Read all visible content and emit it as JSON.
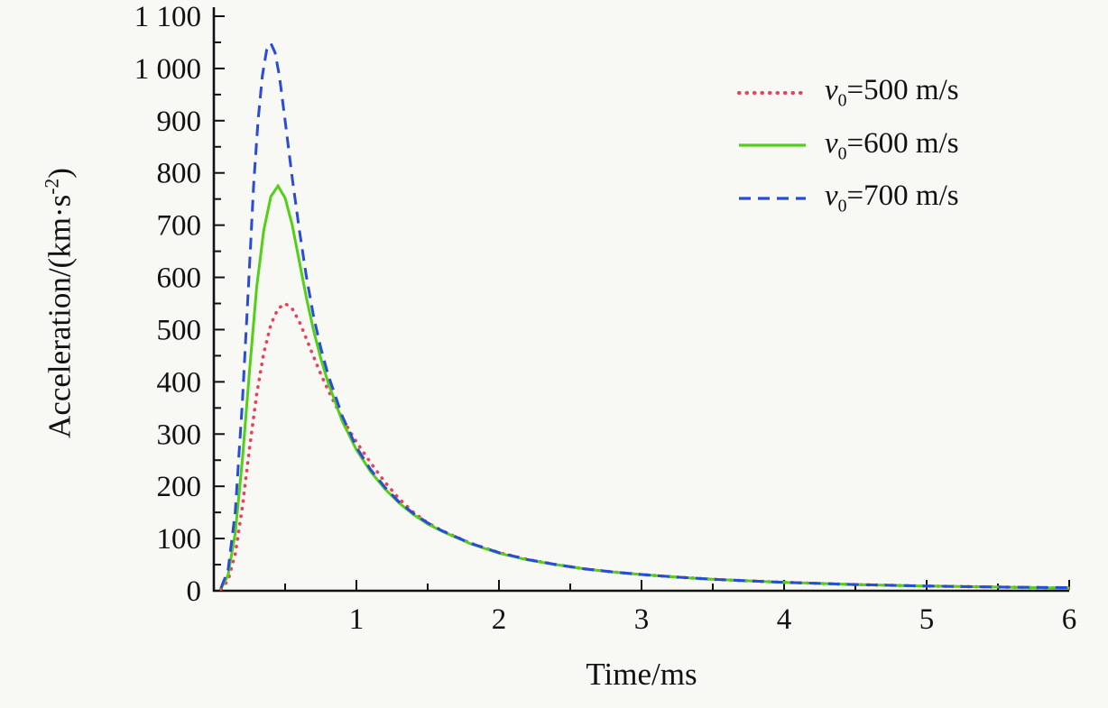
{
  "chart_data": {
    "type": "line",
    "title": "",
    "xlabel": "Time/ms",
    "ylabel": "Acceleration/(km·s⁻²)",
    "ylabel_parts": {
      "pre": "Acceleration/(km·s",
      "sup": "-2",
      "post": ")"
    },
    "xlim": [
      0,
      6
    ],
    "ylim": [
      0,
      1100
    ],
    "x_major_ticks": [
      1,
      2,
      3,
      4,
      5,
      6
    ],
    "x_tick_labels": [
      "1",
      "2",
      "3",
      "4",
      "5",
      "6"
    ],
    "x_minor_step": 0.5,
    "y_major_step": 100,
    "y_tick_labels": [
      "0",
      "100",
      "200",
      "300",
      "400",
      "500",
      "600",
      "700",
      "800",
      "900",
      "1 000",
      "1 100"
    ],
    "y_minor_step": 50,
    "grid": false,
    "legend_position": "top-right",
    "axis_color": "#111111",
    "background": "#f8f8f5",
    "series": [
      {
        "id": "v0-500",
        "name": "v0=500 m/s",
        "label": {
          "var": "v",
          "sub": "0",
          "value": "=500 m/s"
        },
        "color": "#e8415a",
        "style": "dotted",
        "peak": {
          "t": 0.5,
          "a": 550
        },
        "x": [
          0.05,
          0.1,
          0.15,
          0.2,
          0.25,
          0.3,
          0.35,
          0.4,
          0.45,
          0.5,
          0.55,
          0.6,
          0.65,
          0.7,
          0.75,
          0.8,
          0.9,
          1.0,
          1.1,
          1.2,
          1.3,
          1.4,
          1.5,
          1.6,
          1.8,
          2.0,
          2.2,
          2.4,
          2.6,
          2.8,
          3.0,
          3.25,
          3.5,
          3.75,
          4.0,
          4.5,
          5.0,
          5.5,
          6.0
        ],
        "y": [
          3,
          20,
          70,
          160,
          272,
          375,
          455,
          510,
          540,
          550,
          540,
          515,
          482,
          448,
          415,
          385,
          330,
          285,
          245,
          208,
          176,
          150,
          130,
          115,
          91,
          73,
          60,
          50,
          42,
          36,
          31,
          26,
          22,
          19,
          16,
          12,
          9,
          7,
          5
        ]
      },
      {
        "id": "v0-600",
        "name": "v0=600 m/s",
        "label": {
          "var": "v",
          "sub": "0",
          "value": "=600 m/s"
        },
        "color": "#52d017",
        "style": "solid",
        "peak": {
          "t": 0.45,
          "a": 775
        },
        "x": [
          0.05,
          0.1,
          0.15,
          0.2,
          0.25,
          0.3,
          0.35,
          0.4,
          0.45,
          0.5,
          0.55,
          0.6,
          0.65,
          0.7,
          0.75,
          0.8,
          0.9,
          1.0,
          1.1,
          1.2,
          1.3,
          1.4,
          1.5,
          1.6,
          1.8,
          2.0,
          2.2,
          2.4,
          2.6,
          2.8,
          3.0,
          3.25,
          3.5,
          3.75,
          4.0,
          4.5,
          5.0,
          5.5,
          6.0
        ],
        "y": [
          4,
          30,
          110,
          250,
          420,
          580,
          690,
          755,
          775,
          752,
          700,
          630,
          560,
          498,
          445,
          400,
          325,
          270,
          228,
          195,
          168,
          146,
          128,
          114,
          90,
          72,
          59,
          50,
          42,
          36,
          31,
          26,
          22,
          19,
          16,
          12,
          9,
          7,
          5
        ]
      },
      {
        "id": "v0-700",
        "name": "v0=700 m/s",
        "label": {
          "var": "v",
          "sub": "0",
          "value": "=700 m/s"
        },
        "color": "#2a4bd7",
        "style": "dashed",
        "peak": {
          "t": 0.4,
          "a": 1048
        },
        "x": [
          0.05,
          0.1,
          0.15,
          0.2,
          0.25,
          0.28,
          0.31,
          0.34,
          0.37,
          0.4,
          0.43,
          0.46,
          0.5,
          0.55,
          0.6,
          0.65,
          0.7,
          0.75,
          0.8,
          0.9,
          1.0,
          1.1,
          1.2,
          1.3,
          1.4,
          1.5,
          1.6,
          1.8,
          2.0,
          2.2,
          2.4,
          2.6,
          2.8,
          3.0,
          3.25,
          3.5,
          3.75,
          4.0,
          4.5,
          5.0,
          5.5,
          6.0
        ],
        "y": [
          5,
          40,
          150,
          360,
          620,
          780,
          900,
          985,
          1035,
          1048,
          1030,
          985,
          900,
          790,
          690,
          600,
          525,
          465,
          415,
          335,
          275,
          232,
          198,
          170,
          148,
          130,
          115,
          91,
          73,
          60,
          50,
          42,
          36,
          31,
          26,
          22,
          19,
          16,
          12,
          9,
          7,
          6
        ]
      }
    ]
  }
}
